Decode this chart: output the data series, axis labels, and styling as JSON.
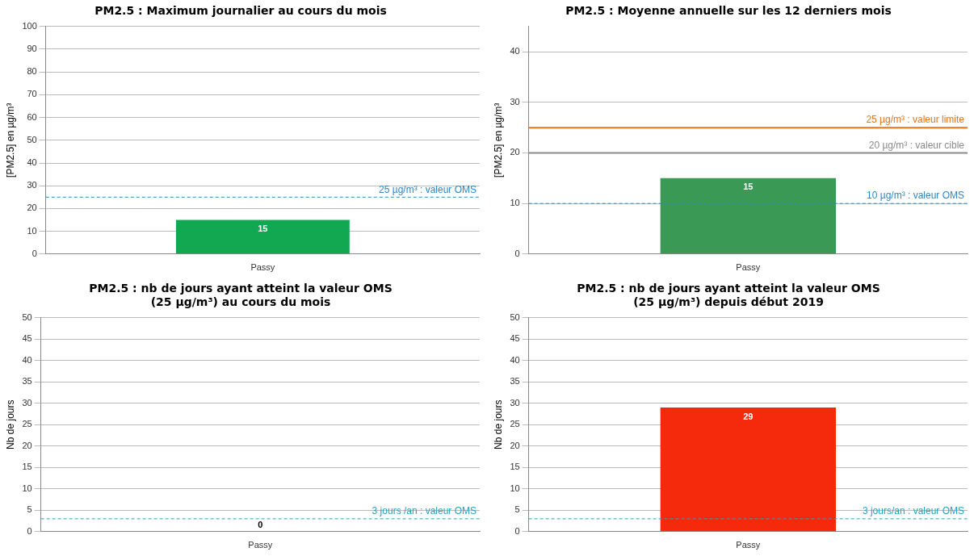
{
  "chart_data": [
    {
      "type": "bar",
      "title": "PM2.5 : Maximum journalier au cours du mois",
      "ylabel": "[PM2.5] en µg/m³",
      "categories": [
        "Passy"
      ],
      "values": [
        15
      ],
      "color": "#12a852",
      "ylim": [
        0,
        100
      ],
      "yticks": [
        0,
        10,
        20,
        30,
        40,
        50,
        60,
        70,
        80,
        90,
        100
      ],
      "grid": "y",
      "legend": false,
      "data_labels": true,
      "ref_lines": [
        {
          "axis": "y",
          "value": 25,
          "label": "25 µg/m³ : valeur OMS",
          "color": "#2e86c8",
          "line_style": "dashed"
        }
      ]
    },
    {
      "type": "bar",
      "title": "PM2.5 : Moyenne annuelle sur les 12 derniers mois",
      "ylabel": "[PM2.5] en µg/m³",
      "categories": [
        "Passy"
      ],
      "values": [
        15
      ],
      "color": "#3a9a55",
      "ylim": [
        0,
        45
      ],
      "yticks": [
        0,
        10,
        20,
        30,
        40
      ],
      "grid": "y",
      "legend": false,
      "data_labels": true,
      "ref_lines": [
        {
          "axis": "y",
          "value": 25,
          "label": "25 µg/m³ : valeur limite",
          "color": "#e8731a",
          "line_style": "solid"
        },
        {
          "axis": "y",
          "value": 20,
          "label": "20 µg/m³ : valeur cible",
          "color": "#8a8a8a",
          "line_style": "solid"
        },
        {
          "axis": "y",
          "value": 10,
          "label": "10 µg/m³ : valeur OMS",
          "color": "#2e86c8",
          "line_style": "dashed"
        }
      ]
    },
    {
      "type": "bar",
      "title": "PM2.5 : nb de jours ayant atteint la valeur OMS\n(25 µg/m³) au cours du mois",
      "ylabel": "Nb de jours",
      "categories": [
        "Passy"
      ],
      "values": [
        0
      ],
      "color": "#12a852",
      "ylim": [
        0,
        50
      ],
      "yticks": [
        0,
        5,
        10,
        15,
        20,
        25,
        30,
        35,
        40,
        45,
        50
      ],
      "grid": "y",
      "legend": false,
      "data_labels": true,
      "ref_lines": [
        {
          "axis": "y",
          "value": 3,
          "label": "3 jours /an : valeur OMS",
          "color": "#2aa0c0",
          "line_style": "dashed"
        }
      ]
    },
    {
      "type": "bar",
      "title": "PM2.5 : nb de jours ayant atteint la valeur OMS\n(25 µg/m³) depuis début 2019",
      "ylabel": "Nb de jours",
      "categories": [
        "Passy"
      ],
      "values": [
        29
      ],
      "color": "#f52a0c",
      "ylim": [
        0,
        50
      ],
      "yticks": [
        0,
        5,
        10,
        15,
        20,
        25,
        30,
        35,
        40,
        45,
        50
      ],
      "grid": "y",
      "legend": false,
      "data_labels": true,
      "ref_lines": [
        {
          "axis": "y",
          "value": 3,
          "label": "3 jours/an : valeur OMS",
          "color": "#2aa0c0",
          "line_style": "dashed"
        }
      ]
    }
  ]
}
